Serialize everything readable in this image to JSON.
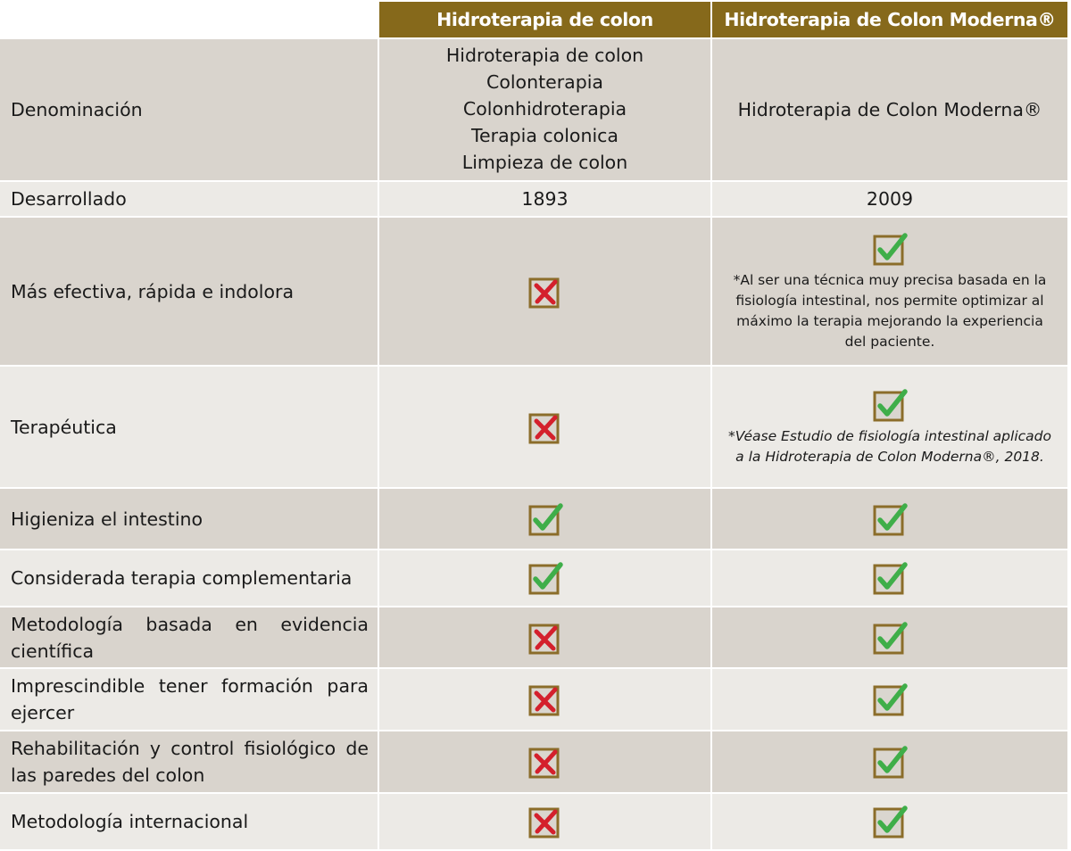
{
  "headers": {
    "col1": "Hidroterapia de colon",
    "col2": "Hidroterapia de Colon Moderna®"
  },
  "rows": [
    {
      "label": "Denominación",
      "col1_lines": [
        "Hidroterapia de colon",
        "Colonterapia",
        "Colonhidroterapia",
        "Terapia colonica",
        "Limpieza de colon"
      ],
      "col2_text": "Hidroterapia de Colon Moderna®"
    },
    {
      "label": "Desarrollado",
      "col1_text": "1893",
      "col2_text": "2009"
    },
    {
      "label": "Más efectiva, rápida e indolora",
      "col1": "cross",
      "col2": "check",
      "col2_note": "*Al ser una técnica muy precisa  basada en la fisiología intestinal, nos permite optimizar al máximo la terapia mejorando la experiencia del paciente."
    },
    {
      "label": "Terapéutica",
      "col1": "cross",
      "col2": "check",
      "col2_note": "*Véase Estudio de fisiología intestinal aplicado a la Hidroterapia de Colon Moderna®, 2018."
    },
    {
      "label": "Higieniza el intestino",
      "col1": "check",
      "col2": "check"
    },
    {
      "label": "Considerada terapia complementaria",
      "col1": "check",
      "col2": "check"
    },
    {
      "label": "Metodología basada en evidencia científica",
      "col1": "cross",
      "col2": "check"
    },
    {
      "label": "Imprescindible tener formación para ejercer",
      "col1": "cross",
      "col2": "check"
    },
    {
      "label": "Rehabilitación y  control fisiológico de las paredes del colon",
      "col1": "cross",
      "col2": "check"
    },
    {
      "label": "Metodología internacional",
      "col1": "cross",
      "col2": "check"
    }
  ],
  "colors": {
    "header_bg": "#86691b",
    "row_dark": "#d9d4cd",
    "row_light": "#eceae6",
    "box_border": "#8b6d2a",
    "check": "#3fae49",
    "cross": "#d4202c"
  },
  "icons": {
    "check": "green-checkmark-in-box",
    "cross": "red-x-in-box"
  }
}
